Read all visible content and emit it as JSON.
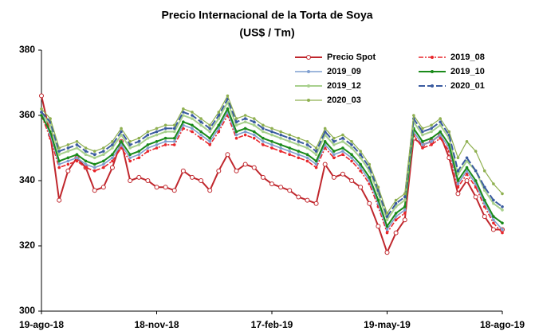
{
  "chart_data": {
    "type": "line",
    "title": "Precio Internacional de la Torta de Soya",
    "subtitle": "(US$ / Tm)",
    "categories": [
      "19-ago-18",
      null,
      null,
      null,
      null,
      null,
      null,
      null,
      null,
      null,
      null,
      null,
      null,
      "18-nov-18",
      null,
      null,
      null,
      null,
      null,
      null,
      null,
      null,
      null,
      null,
      null,
      null,
      "17-feb-19",
      null,
      null,
      null,
      null,
      null,
      null,
      null,
      null,
      null,
      null,
      null,
      null,
      "19-may-19",
      null,
      null,
      null,
      null,
      null,
      null,
      null,
      null,
      null,
      null,
      null,
      null,
      "18-ago-19"
    ],
    "ylim": [
      300,
      380
    ],
    "yticks": [
      300,
      320,
      340,
      360,
      380
    ],
    "grid": false,
    "series": [
      {
        "name": "Precio Spot",
        "color": "#c0272d",
        "values": [
          366,
          354,
          334,
          343,
          347,
          344,
          337,
          338,
          344,
          352,
          340,
          341,
          340,
          338,
          338,
          337,
          343,
          341,
          340,
          337,
          343,
          348,
          343,
          345,
          344,
          341,
          339,
          338,
          337,
          335,
          334,
          333,
          345,
          341,
          342,
          340,
          338,
          333,
          326,
          318,
          324,
          328,
          353,
          351,
          352,
          354,
          347,
          336,
          340,
          335,
          329,
          325,
          325
        ]
      },
      {
        "name": "2019_08",
        "color": "#e8262b",
        "values": [
          360,
          353,
          344,
          345,
          346,
          344,
          343,
          344,
          346,
          350,
          346,
          347,
          349,
          350,
          351,
          351,
          356,
          355,
          353,
          351,
          355,
          360,
          353,
          354,
          353,
          351,
          350,
          349,
          348,
          347,
          346,
          344,
          350,
          347,
          348,
          346,
          343,
          339,
          332,
          324,
          328,
          330,
          354,
          350,
          351,
          353,
          349,
          338,
          342,
          338,
          332,
          327,
          324
        ]
      },
      {
        "name": "2019_09",
        "color": "#7f9fd0",
        "values": [
          361,
          354,
          345,
          346,
          347,
          345,
          344,
          345,
          347,
          351,
          347,
          348,
          350,
          351,
          352,
          352,
          357,
          356,
          354,
          352,
          356,
          361,
          354,
          355,
          354,
          352,
          351,
          350,
          349,
          348,
          347,
          345,
          351,
          348,
          349,
          347,
          344,
          340,
          333,
          325,
          329,
          331,
          355,
          351,
          352,
          354,
          350,
          339,
          343,
          339,
          333,
          328,
          325
        ]
      },
      {
        "name": "2019_10",
        "color": "#1a8a1a",
        "values": [
          360,
          355,
          346,
          347,
          348,
          346,
          345,
          346,
          348,
          352,
          348,
          349,
          351,
          352,
          353,
          353,
          358,
          357,
          355,
          353,
          357,
          362,
          355,
          356,
          355,
          353,
          352,
          351,
          350,
          349,
          348,
          346,
          352,
          349,
          350,
          348,
          345,
          341,
          334,
          326,
          330,
          332,
          356,
          352,
          353,
          355,
          351,
          340,
          344,
          340,
          334,
          329,
          327
        ]
      },
      {
        "name": "2019_12",
        "color": "#a8d08d",
        "values": [
          361,
          357,
          348,
          349,
          350,
          348,
          347,
          348,
          350,
          354,
          350,
          351,
          353,
          354,
          355,
          355,
          360,
          359,
          357,
          355,
          359,
          364,
          357,
          358,
          357,
          355,
          354,
          353,
          352,
          351,
          350,
          348,
          354,
          351,
          352,
          350,
          347,
          343,
          336,
          328,
          332,
          334,
          358,
          354,
          355,
          357,
          353,
          342,
          346,
          343,
          337,
          333,
          331
        ]
      },
      {
        "name": "2020_01",
        "color": "#3a5ba0",
        "values": [
          361,
          358,
          349,
          350,
          351,
          349,
          348,
          349,
          351,
          355,
          351,
          352,
          354,
          355,
          356,
          356,
          361,
          360,
          358,
          356,
          360,
          365,
          358,
          359,
          358,
          356,
          355,
          354,
          353,
          352,
          351,
          349,
          355,
          352,
          353,
          351,
          348,
          344,
          337,
          329,
          333,
          335,
          359,
          355,
          356,
          358,
          354,
          343,
          347,
          343,
          338,
          334,
          332
        ]
      },
      {
        "name": "2020_03",
        "color": "#8fb050",
        "values": [
          362,
          359,
          350,
          351,
          352,
          350,
          349,
          350,
          352,
          356,
          352,
          353,
          355,
          356,
          357,
          357,
          362,
          361,
          359,
          357,
          361,
          366,
          359,
          360,
          359,
          357,
          356,
          355,
          354,
          353,
          352,
          350,
          356,
          353,
          354,
          352,
          349,
          345,
          338,
          330,
          334,
          336,
          360,
          356,
          357,
          359,
          355,
          347,
          352,
          349,
          343,
          339,
          336
        ]
      }
    ]
  }
}
